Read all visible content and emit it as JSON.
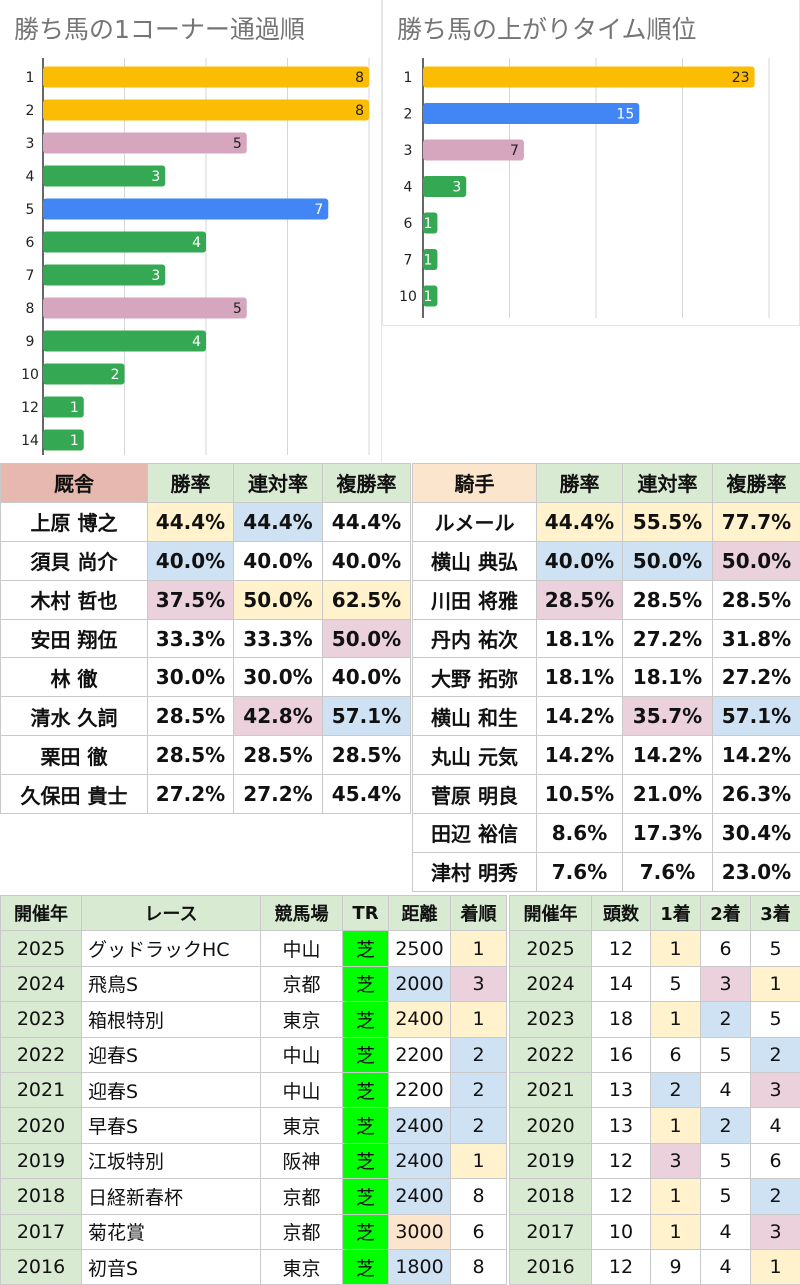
{
  "colors": {
    "orange": "#fbbc04",
    "blue": "#4285f4",
    "pink": "#d5a6bd",
    "green": "#34a853",
    "cell_yellow": "#fff2cc",
    "cell_blue": "#cfe2f3",
    "cell_pink": "#ead1dc",
    "cell_orange": "#fce5cd",
    "header_green": "#d9ead3",
    "tr_green": "#00ff00"
  },
  "chart_data": [
    {
      "type": "bar",
      "orientation": "horizontal",
      "title": "勝ち馬の1コーナー通過順",
      "categories": [
        "1",
        "2",
        "3",
        "4",
        "5",
        "6",
        "7",
        "8",
        "9",
        "10",
        "12",
        "14"
      ],
      "values": [
        8,
        8,
        5,
        3,
        7,
        4,
        3,
        5,
        4,
        2,
        1,
        1
      ],
      "bar_colors": [
        "orange",
        "orange",
        "pink",
        "green",
        "blue",
        "green",
        "green",
        "pink",
        "green",
        "green",
        "green",
        "green"
      ],
      "xlim": [
        0,
        8
      ],
      "grid": true,
      "data_labels": true
    },
    {
      "type": "bar",
      "orientation": "horizontal",
      "title": "勝ち馬の上がりタイム順位",
      "categories": [
        "1",
        "2",
        "3",
        "4",
        "6",
        "7",
        "10"
      ],
      "values": [
        23,
        15,
        7,
        3,
        1,
        1,
        1
      ],
      "bar_colors": [
        "orange",
        "blue",
        "pink",
        "green",
        "green",
        "green",
        "green"
      ],
      "xlim": [
        0,
        24
      ],
      "grid": true,
      "data_labels": true
    }
  ],
  "trainer_table": {
    "headers": [
      "厩舎",
      "勝率",
      "連対率",
      "複勝率"
    ],
    "rows": [
      {
        "name": "上原 博之",
        "cells": [
          {
            "v": "44.4%",
            "c": "yellow"
          },
          {
            "v": "44.4%",
            "c": "blue"
          },
          {
            "v": "44.4%",
            "c": ""
          }
        ]
      },
      {
        "name": "須貝 尚介",
        "cells": [
          {
            "v": "40.0%",
            "c": "blue"
          },
          {
            "v": "40.0%",
            "c": ""
          },
          {
            "v": "40.0%",
            "c": ""
          }
        ]
      },
      {
        "name": "木村 哲也",
        "cells": [
          {
            "v": "37.5%",
            "c": "pink"
          },
          {
            "v": "50.0%",
            "c": "yellow"
          },
          {
            "v": "62.5%",
            "c": "yellow"
          }
        ]
      },
      {
        "name": "安田 翔伍",
        "cells": [
          {
            "v": "33.3%",
            "c": ""
          },
          {
            "v": "33.3%",
            "c": ""
          },
          {
            "v": "50.0%",
            "c": "pink"
          }
        ]
      },
      {
        "name": "林 徹",
        "cells": [
          {
            "v": "30.0%",
            "c": ""
          },
          {
            "v": "30.0%",
            "c": ""
          },
          {
            "v": "40.0%",
            "c": ""
          }
        ]
      },
      {
        "name": "清水 久詞",
        "cells": [
          {
            "v": "28.5%",
            "c": ""
          },
          {
            "v": "42.8%",
            "c": "pink"
          },
          {
            "v": "57.1%",
            "c": "blue"
          }
        ]
      },
      {
        "name": "栗田 徹",
        "cells": [
          {
            "v": "28.5%",
            "c": ""
          },
          {
            "v": "28.5%",
            "c": ""
          },
          {
            "v": "28.5%",
            "c": ""
          }
        ]
      },
      {
        "name": "久保田 貴士",
        "cells": [
          {
            "v": "27.2%",
            "c": ""
          },
          {
            "v": "27.2%",
            "c": ""
          },
          {
            "v": "45.4%",
            "c": ""
          }
        ]
      }
    ]
  },
  "jockey_table": {
    "headers": [
      "騎手",
      "勝率",
      "連対率",
      "複勝率"
    ],
    "rows": [
      {
        "name": "ルメール",
        "cells": [
          {
            "v": "44.4%",
            "c": "yellow"
          },
          {
            "v": "55.5%",
            "c": "yellow"
          },
          {
            "v": "77.7%",
            "c": "yellow"
          }
        ]
      },
      {
        "name": "横山 典弘",
        "cells": [
          {
            "v": "40.0%",
            "c": "blue"
          },
          {
            "v": "50.0%",
            "c": "blue"
          },
          {
            "v": "50.0%",
            "c": "pink"
          }
        ]
      },
      {
        "name": "川田 将雅",
        "cells": [
          {
            "v": "28.5%",
            "c": "pink"
          },
          {
            "v": "28.5%",
            "c": ""
          },
          {
            "v": "28.5%",
            "c": ""
          }
        ]
      },
      {
        "name": "丹内 祐次",
        "cells": [
          {
            "v": "18.1%",
            "c": ""
          },
          {
            "v": "27.2%",
            "c": ""
          },
          {
            "v": "31.8%",
            "c": ""
          }
        ]
      },
      {
        "name": "大野 拓弥",
        "cells": [
          {
            "v": "18.1%",
            "c": ""
          },
          {
            "v": "18.1%",
            "c": ""
          },
          {
            "v": "27.2%",
            "c": ""
          }
        ]
      },
      {
        "name": "横山 和生",
        "cells": [
          {
            "v": "14.2%",
            "c": ""
          },
          {
            "v": "35.7%",
            "c": "pink"
          },
          {
            "v": "57.1%",
            "c": "blue"
          }
        ]
      },
      {
        "name": "丸山 元気",
        "cells": [
          {
            "v": "14.2%",
            "c": ""
          },
          {
            "v": "14.2%",
            "c": ""
          },
          {
            "v": "14.2%",
            "c": ""
          }
        ]
      },
      {
        "name": "菅原 明良",
        "cells": [
          {
            "v": "10.5%",
            "c": ""
          },
          {
            "v": "21.0%",
            "c": ""
          },
          {
            "v": "26.3%",
            "c": ""
          }
        ]
      },
      {
        "name": "田辺 裕信",
        "cells": [
          {
            "v": "8.6%",
            "c": ""
          },
          {
            "v": "17.3%",
            "c": ""
          },
          {
            "v": "30.4%",
            "c": ""
          }
        ]
      },
      {
        "name": "津村 明秀",
        "cells": [
          {
            "v": "7.6%",
            "c": ""
          },
          {
            "v": "7.6%",
            "c": ""
          },
          {
            "v": "23.0%",
            "c": ""
          }
        ]
      }
    ]
  },
  "race_table": {
    "headers": [
      "開催年",
      "レース",
      "競馬場",
      "TR",
      "距離",
      "着順"
    ],
    "rows": [
      {
        "year": "2025",
        "race": "グッドラックHC",
        "venue": "中山",
        "tr": "芝",
        "dist": "2500",
        "dist_c": "",
        "rank": "1",
        "rank_c": "yellow"
      },
      {
        "year": "2024",
        "race": "飛鳥S",
        "venue": "京都",
        "tr": "芝",
        "dist": "2000",
        "dist_c": "blue",
        "rank": "3",
        "rank_c": "pink"
      },
      {
        "year": "2023",
        "race": "箱根特別",
        "venue": "東京",
        "tr": "芝",
        "dist": "2400",
        "dist_c": "yellow",
        "rank": "1",
        "rank_c": "yellow"
      },
      {
        "year": "2022",
        "race": "迎春S",
        "venue": "中山",
        "tr": "芝",
        "dist": "2200",
        "dist_c": "",
        "rank": "2",
        "rank_c": "blue"
      },
      {
        "year": "2021",
        "race": "迎春S",
        "venue": "中山",
        "tr": "芝",
        "dist": "2200",
        "dist_c": "",
        "rank": "2",
        "rank_c": "blue"
      },
      {
        "year": "2020",
        "race": "早春S",
        "venue": "東京",
        "tr": "芝",
        "dist": "2400",
        "dist_c": "blue",
        "rank": "2",
        "rank_c": "blue"
      },
      {
        "year": "2019",
        "race": "江坂特別",
        "venue": "阪神",
        "tr": "芝",
        "dist": "2400",
        "dist_c": "blue",
        "rank": "1",
        "rank_c": "yellow"
      },
      {
        "year": "2018",
        "race": "日経新春杯",
        "venue": "京都",
        "tr": "芝",
        "dist": "2400",
        "dist_c": "blue",
        "rank": "8",
        "rank_c": ""
      },
      {
        "year": "2017",
        "race": "菊花賞",
        "venue": "京都",
        "tr": "芝",
        "dist": "3000",
        "dist_c": "orange",
        "rank": "6",
        "rank_c": ""
      },
      {
        "year": "2016",
        "race": "初音S",
        "venue": "東京",
        "tr": "芝",
        "dist": "1800",
        "dist_c": "blue",
        "rank": "8",
        "rank_c": ""
      }
    ]
  },
  "field_table": {
    "headers": [
      "開催年",
      "頭数",
      "1着",
      "2着",
      "3着"
    ],
    "rows": [
      {
        "year": "2025",
        "heads": "12",
        "p1": "1",
        "p1_c": "yellow",
        "p2": "6",
        "p2_c": "",
        "p3": "5",
        "p3_c": ""
      },
      {
        "year": "2024",
        "heads": "14",
        "p1": "5",
        "p1_c": "",
        "p2": "3",
        "p2_c": "pink",
        "p3": "1",
        "p3_c": "yellow"
      },
      {
        "year": "2023",
        "heads": "18",
        "p1": "1",
        "p1_c": "yellow",
        "p2": "2",
        "p2_c": "blue",
        "p3": "5",
        "p3_c": ""
      },
      {
        "year": "2022",
        "heads": "16",
        "p1": "6",
        "p1_c": "",
        "p2": "5",
        "p2_c": "",
        "p3": "2",
        "p3_c": "blue"
      },
      {
        "year": "2021",
        "heads": "13",
        "p1": "2",
        "p1_c": "blue",
        "p2": "4",
        "p2_c": "",
        "p3": "3",
        "p3_c": "pink"
      },
      {
        "year": "2020",
        "heads": "13",
        "p1": "1",
        "p1_c": "yellow",
        "p2": "2",
        "p2_c": "blue",
        "p3": "4",
        "p3_c": ""
      },
      {
        "year": "2019",
        "heads": "12",
        "p1": "3",
        "p1_c": "pink",
        "p2": "5",
        "p2_c": "",
        "p3": "6",
        "p3_c": ""
      },
      {
        "year": "2018",
        "heads": "12",
        "p1": "1",
        "p1_c": "yellow",
        "p2": "5",
        "p2_c": "",
        "p3": "2",
        "p3_c": "blue"
      },
      {
        "year": "2017",
        "heads": "10",
        "p1": "1",
        "p1_c": "yellow",
        "p2": "4",
        "p2_c": "",
        "p3": "3",
        "p3_c": "pink"
      },
      {
        "year": "2016",
        "heads": "12",
        "p1": "9",
        "p1_c": "",
        "p2": "4",
        "p2_c": "",
        "p3": "1",
        "p3_c": "yellow"
      }
    ]
  }
}
